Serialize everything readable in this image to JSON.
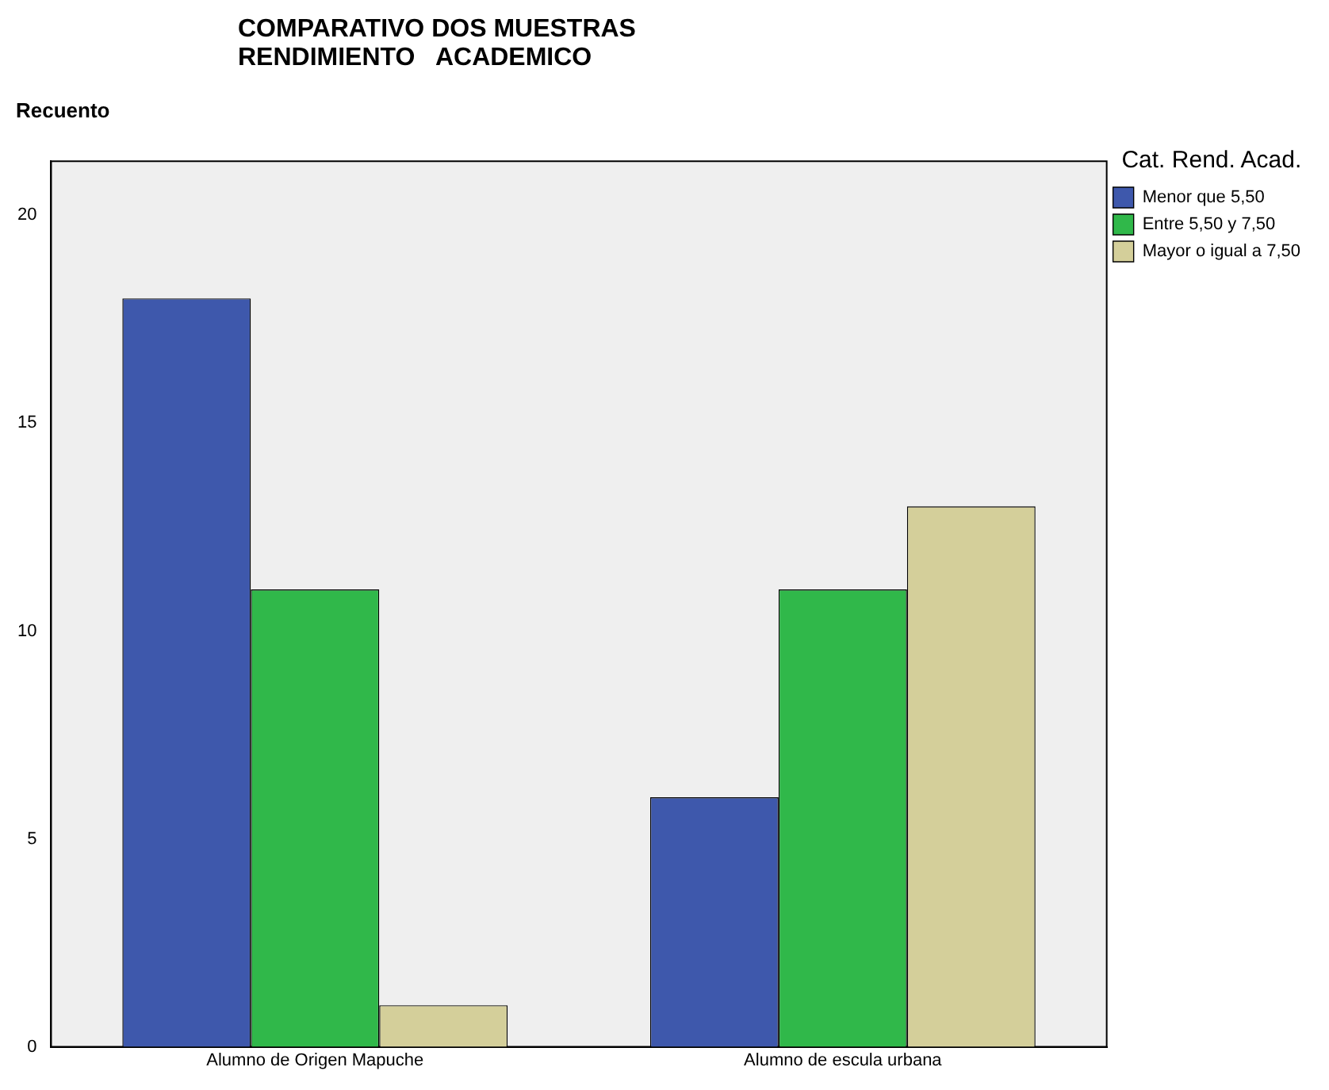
{
  "chart_data": {
    "type": "bar",
    "title": "COMPARATIVO DOS MUESTRAS\nRENDIMIENTO   ACADEMICO",
    "ylabel": "Recuento",
    "legend_title": "Cat. Rend. Acad.",
    "legend": "top right",
    "categories": [
      "Alumno de Origen Mapuche",
      "Alumno de escula urbana"
    ],
    "series": [
      {
        "name": "Menor que 5,50",
        "color": "#3e58ac",
        "values": [
          18,
          6
        ]
      },
      {
        "name": "Entre 5,50 y 7,50",
        "color": "#30b84a",
        "values": [
          11,
          11
        ]
      },
      {
        "name": "Mayor o igual a 7,50",
        "color": "#d4cf9a",
        "values": [
          1,
          13
        ]
      }
    ],
    "ylim": [
      0,
      21.3
    ],
    "yticks": [
      0,
      5,
      10,
      15,
      20
    ]
  }
}
